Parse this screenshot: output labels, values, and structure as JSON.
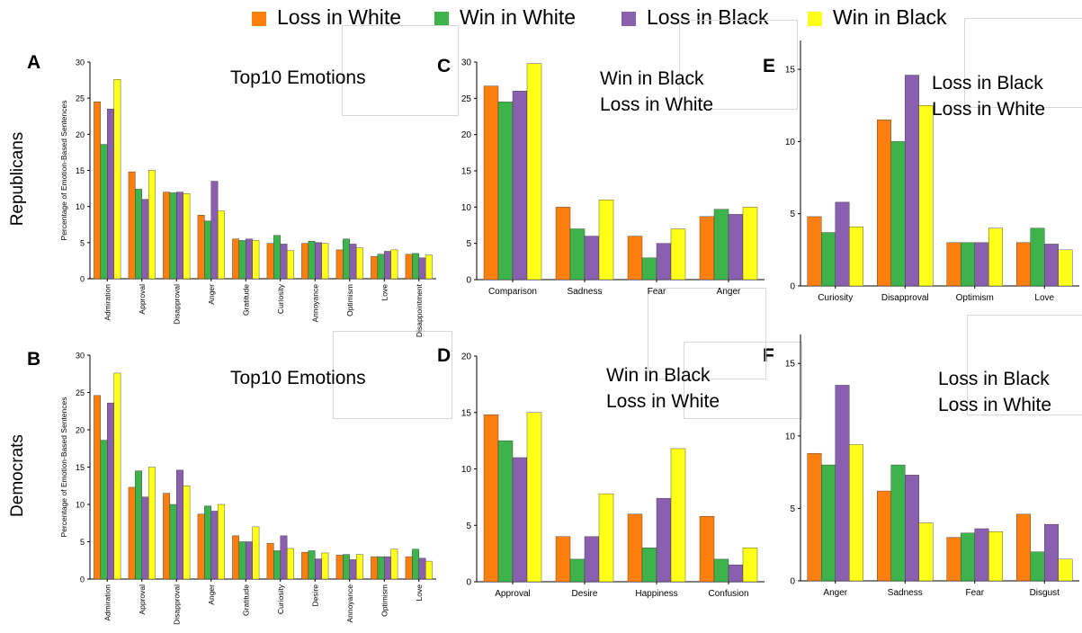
{
  "legend": [
    {
      "label": "Loss in White",
      "color": "#ff7f0e"
    },
    {
      "label": "Win in White",
      "color": "#3cb44b"
    },
    {
      "label": "Loss in Black",
      "color": "#8a5fb0"
    },
    {
      "label": "Win in Black",
      "color": "#ffff19"
    }
  ],
  "row_labels": {
    "top": "Republicans",
    "bottom": "Democrats"
  },
  "panels": {
    "A": "A",
    "B": "B",
    "C": "C",
    "D": "D",
    "E": "E",
    "F": "F"
  },
  "chart_data": [
    {
      "id": "A",
      "type": "bar",
      "title": [
        "Top10 Emotions"
      ],
      "ylabel": "Percentage of Emotion-Based Sentences",
      "ylim": [
        0,
        30
      ],
      "yticks": [
        0,
        5,
        10,
        15,
        20,
        25,
        30
      ],
      "categories": [
        "Admiration",
        "Approval",
        "Disapproval",
        "Anger",
        "Gratitude",
        "Curiosity",
        "Annoyance",
        "Optimism",
        "Love",
        "Disappointment"
      ],
      "series": [
        {
          "name": "Loss in White",
          "values": [
            24.5,
            14.8,
            12.0,
            8.8,
            5.5,
            4.9,
            4.9,
            4.0,
            3.1,
            3.4
          ]
        },
        {
          "name": "Win in White",
          "values": [
            18.6,
            12.4,
            11.9,
            8.0,
            5.3,
            6.0,
            5.2,
            5.5,
            3.4,
            3.5
          ]
        },
        {
          "name": "Loss in Black",
          "values": [
            23.5,
            11.0,
            12.0,
            13.5,
            5.5,
            4.8,
            5.0,
            4.8,
            3.8,
            2.9
          ]
        },
        {
          "name": "Win in Black",
          "values": [
            27.6,
            15.0,
            11.8,
            9.4,
            5.3,
            3.9,
            4.9,
            4.3,
            4.0,
            3.3
          ]
        }
      ]
    },
    {
      "id": "B",
      "type": "bar",
      "title": [
        "Top10 Emotions"
      ],
      "ylabel": "Percentage of Emotion-Based Sentences",
      "ylim": [
        0,
        30
      ],
      "yticks": [
        0,
        5,
        10,
        15,
        20,
        25,
        30
      ],
      "categories": [
        "Admiration",
        "Approval",
        "Disapproval",
        "Anger",
        "Gratitude",
        "Curiosity",
        "Desire",
        "Annoyance",
        "Optimism",
        "Love"
      ],
      "series": [
        {
          "name": "Loss in White",
          "values": [
            24.6,
            12.3,
            11.5,
            8.7,
            5.8,
            4.8,
            3.6,
            3.2,
            3.0,
            3.0
          ]
        },
        {
          "name": "Win in White",
          "values": [
            18.6,
            14.5,
            10.0,
            9.8,
            5.0,
            3.8,
            3.8,
            3.3,
            3.0,
            4.0
          ]
        },
        {
          "name": "Loss in Black",
          "values": [
            23.6,
            11.0,
            14.6,
            9.1,
            5.0,
            5.8,
            2.7,
            2.6,
            3.0,
            2.8
          ]
        },
        {
          "name": "Win in Black",
          "values": [
            27.6,
            15.0,
            12.5,
            10.0,
            7.0,
            4.1,
            3.5,
            3.3,
            4.0,
            2.4
          ]
        }
      ]
    },
    {
      "id": "C",
      "type": "bar",
      "title": [
        "Win in Black",
        "Loss in White"
      ],
      "ylabel": "",
      "ylim": [
        0,
        30
      ],
      "yticks": [
        0,
        5,
        10,
        15,
        20,
        25,
        30
      ],
      "categories": [
        "Comparison",
        "Sadness",
        "Fear",
        "Anger"
      ],
      "series": [
        {
          "name": "Loss in White",
          "values": [
            26.7,
            10.0,
            6.0,
            8.7
          ]
        },
        {
          "name": "Win in White",
          "values": [
            24.5,
            7.0,
            3.0,
            9.7
          ]
        },
        {
          "name": "Loss in Black",
          "values": [
            26.0,
            6.0,
            5.0,
            9.0
          ]
        },
        {
          "name": "Win in Black",
          "values": [
            29.8,
            11.0,
            7.0,
            10.0
          ]
        }
      ]
    },
    {
      "id": "D",
      "type": "bar",
      "title": [
        "Win in Black",
        "Loss in White"
      ],
      "ylabel": "",
      "ylim": [
        0,
        20
      ],
      "yticks": [
        0,
        5,
        10,
        15,
        20
      ],
      "categories": [
        "Approval",
        "Desire",
        "Happiness",
        "Confusion"
      ],
      "series": [
        {
          "name": "Loss in White",
          "values": [
            14.8,
            4.0,
            6.0,
            5.8
          ]
        },
        {
          "name": "Win in White",
          "values": [
            12.5,
            2.0,
            3.0,
            2.0
          ]
        },
        {
          "name": "Loss in Black",
          "values": [
            11.0,
            4.0,
            7.4,
            1.5
          ]
        },
        {
          "name": "Win in Black",
          "values": [
            15.0,
            7.8,
            11.8,
            3.0
          ]
        }
      ]
    },
    {
      "id": "E",
      "type": "bar",
      "title": [
        "Loss in Black",
        "Loss in White"
      ],
      "ylabel": "",
      "ylim": [
        0,
        17
      ],
      "yticks": [
        0,
        5,
        10,
        15
      ],
      "categories": [
        "Curiosity",
        "Disapproval",
        "Optimism",
        "Love"
      ],
      "series": [
        {
          "name": "Loss in White",
          "values": [
            4.8,
            11.5,
            3.0,
            3.0
          ]
        },
        {
          "name": "Win in White",
          "values": [
            3.7,
            10.0,
            3.0,
            4.0
          ]
        },
        {
          "name": "Loss in Black",
          "values": [
            5.8,
            14.6,
            3.0,
            2.9
          ]
        },
        {
          "name": "Win in Black",
          "values": [
            4.1,
            12.5,
            4.0,
            2.5
          ]
        }
      ]
    },
    {
      "id": "F",
      "type": "bar",
      "title": [
        "Loss in Black",
        "Loss in White"
      ],
      "ylabel": "",
      "ylim": [
        0,
        17
      ],
      "yticks": [
        0,
        5,
        10,
        15
      ],
      "categories": [
        "Anger",
        "Sadness",
        "Fear",
        "Disgust"
      ],
      "series": [
        {
          "name": "Loss in White",
          "values": [
            8.8,
            6.2,
            3.0,
            4.6
          ]
        },
        {
          "name": "Win in White",
          "values": [
            8.0,
            8.0,
            3.3,
            2.0
          ]
        },
        {
          "name": "Loss in Black",
          "values": [
            13.5,
            7.3,
            3.6,
            3.9
          ]
        },
        {
          "name": "Win in Black",
          "values": [
            9.4,
            4.0,
            3.4,
            1.5
          ]
        }
      ]
    }
  ]
}
